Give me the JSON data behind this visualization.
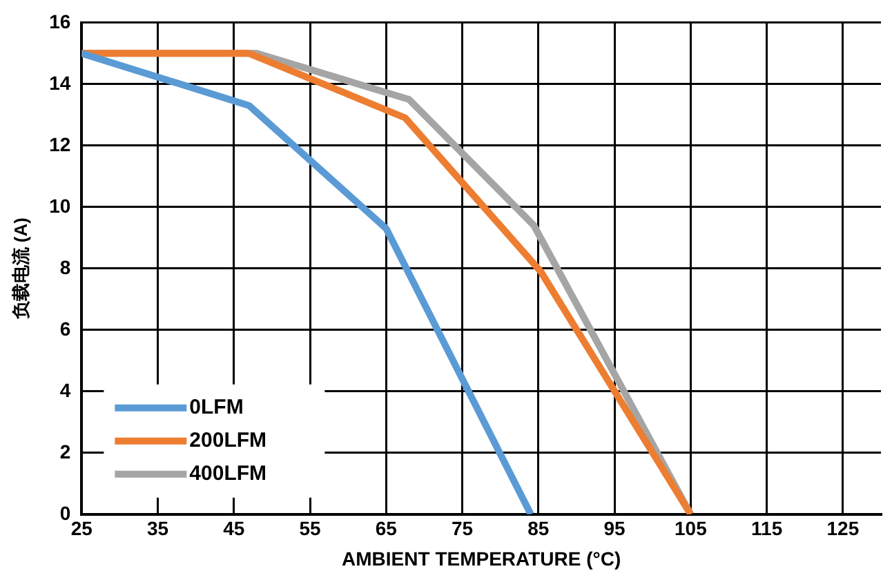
{
  "chart_data": {
    "type": "line",
    "xlabel": "AMBIENT TEMPERATURE (°C)",
    "ylabel": "负载电流 (A)",
    "series": [
      {
        "name": "0LFM",
        "color": "#5b9bd5",
        "x": [
          25,
          47,
          65,
          84
        ],
        "values": [
          15,
          13.3,
          9.3,
          0
        ]
      },
      {
        "name": "200LFM",
        "color": "#ed7d31",
        "x": [
          25,
          47,
          67.5,
          85.3,
          105
        ],
        "values": [
          15,
          15,
          12.9,
          7.9,
          0
        ]
      },
      {
        "name": "400LFM",
        "color": "#a5a5a5",
        "x": [
          25,
          48,
          68,
          84.4,
          105
        ],
        "values": [
          15,
          15,
          13.5,
          9.4,
          0
        ]
      }
    ],
    "xlim": [
      25,
      130
    ],
    "xticks": [
      25,
      35,
      45,
      55,
      65,
      75,
      85,
      95,
      105,
      115,
      125
    ],
    "ylim": [
      0,
      16
    ],
    "yticks": [
      0,
      2,
      4,
      6,
      8,
      10,
      12,
      14,
      16
    ],
    "grid": true,
    "legend": "bottom left",
    "marker": "none",
    "line_style": "solid"
  }
}
